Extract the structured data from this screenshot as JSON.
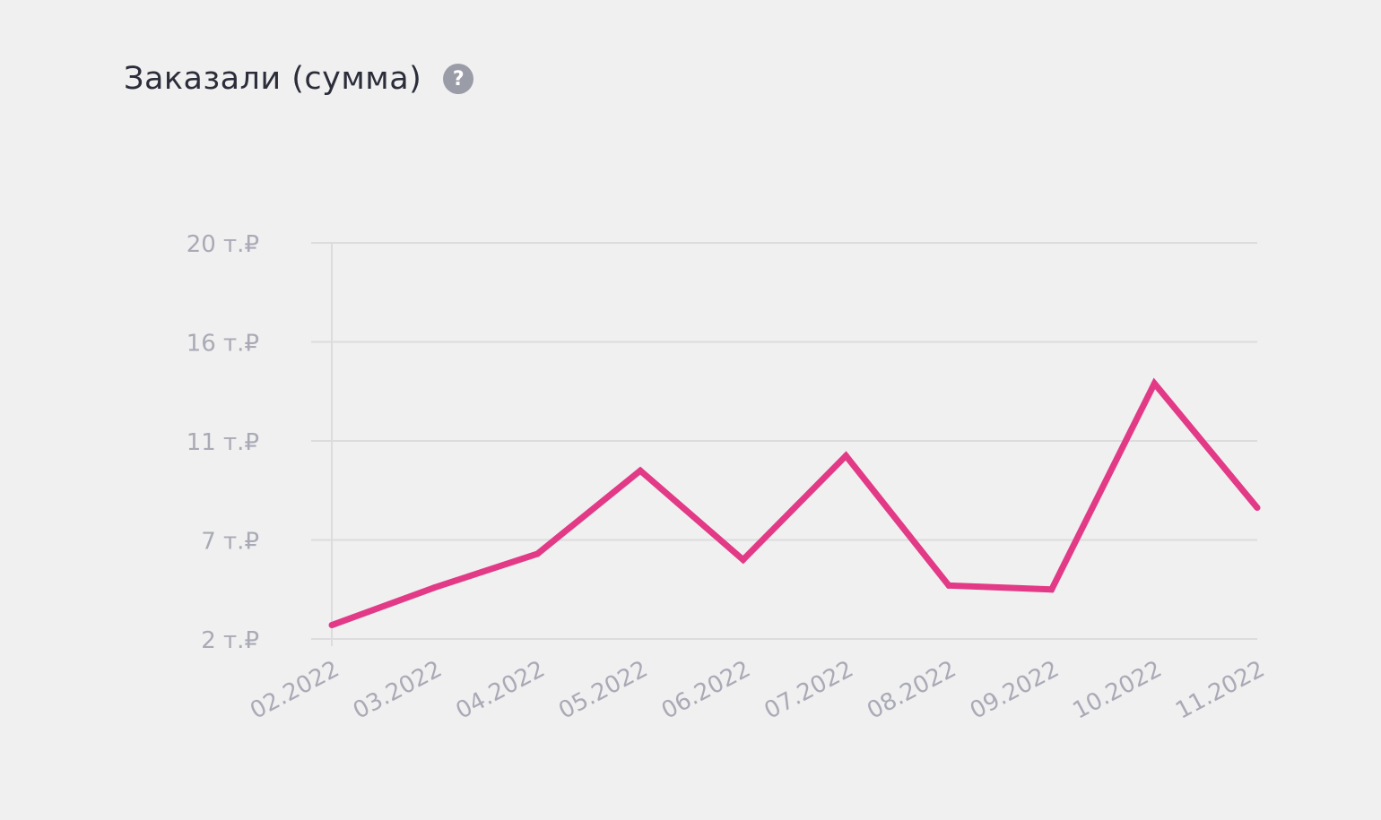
{
  "header": {
    "title": "Заказали (сумма)",
    "help_glyph": "?",
    "help_icon": "question-circle-icon"
  },
  "chart_data": {
    "type": "line",
    "title": "Заказали (сумма)",
    "xlabel": "",
    "ylabel": "",
    "categories": [
      "02.2022",
      "03.2022",
      "04.2022",
      "05.2022",
      "06.2022",
      "07.2022",
      "08.2022",
      "09.2022",
      "10.2022",
      "11.2022"
    ],
    "y_ticks": [
      2,
      7,
      11,
      16,
      20
    ],
    "y_tick_labels": [
      "2 т.₽",
      "7 т.₽",
      "11 т.₽",
      "16 т.₽",
      "20 т.₽"
    ],
    "ylim": [
      2,
      20
    ],
    "grid": true,
    "series": [
      {
        "values": [
          2.7,
          4.6,
          6.3,
          9.8,
          6.0,
          10.4,
          4.7,
          4.5,
          13.9,
          8.3
        ],
        "color": "#e23a86"
      }
    ],
    "colors": {
      "grid": "#dcdcdf",
      "tick_text": "#a9aab6",
      "line": "#e23a86"
    }
  }
}
